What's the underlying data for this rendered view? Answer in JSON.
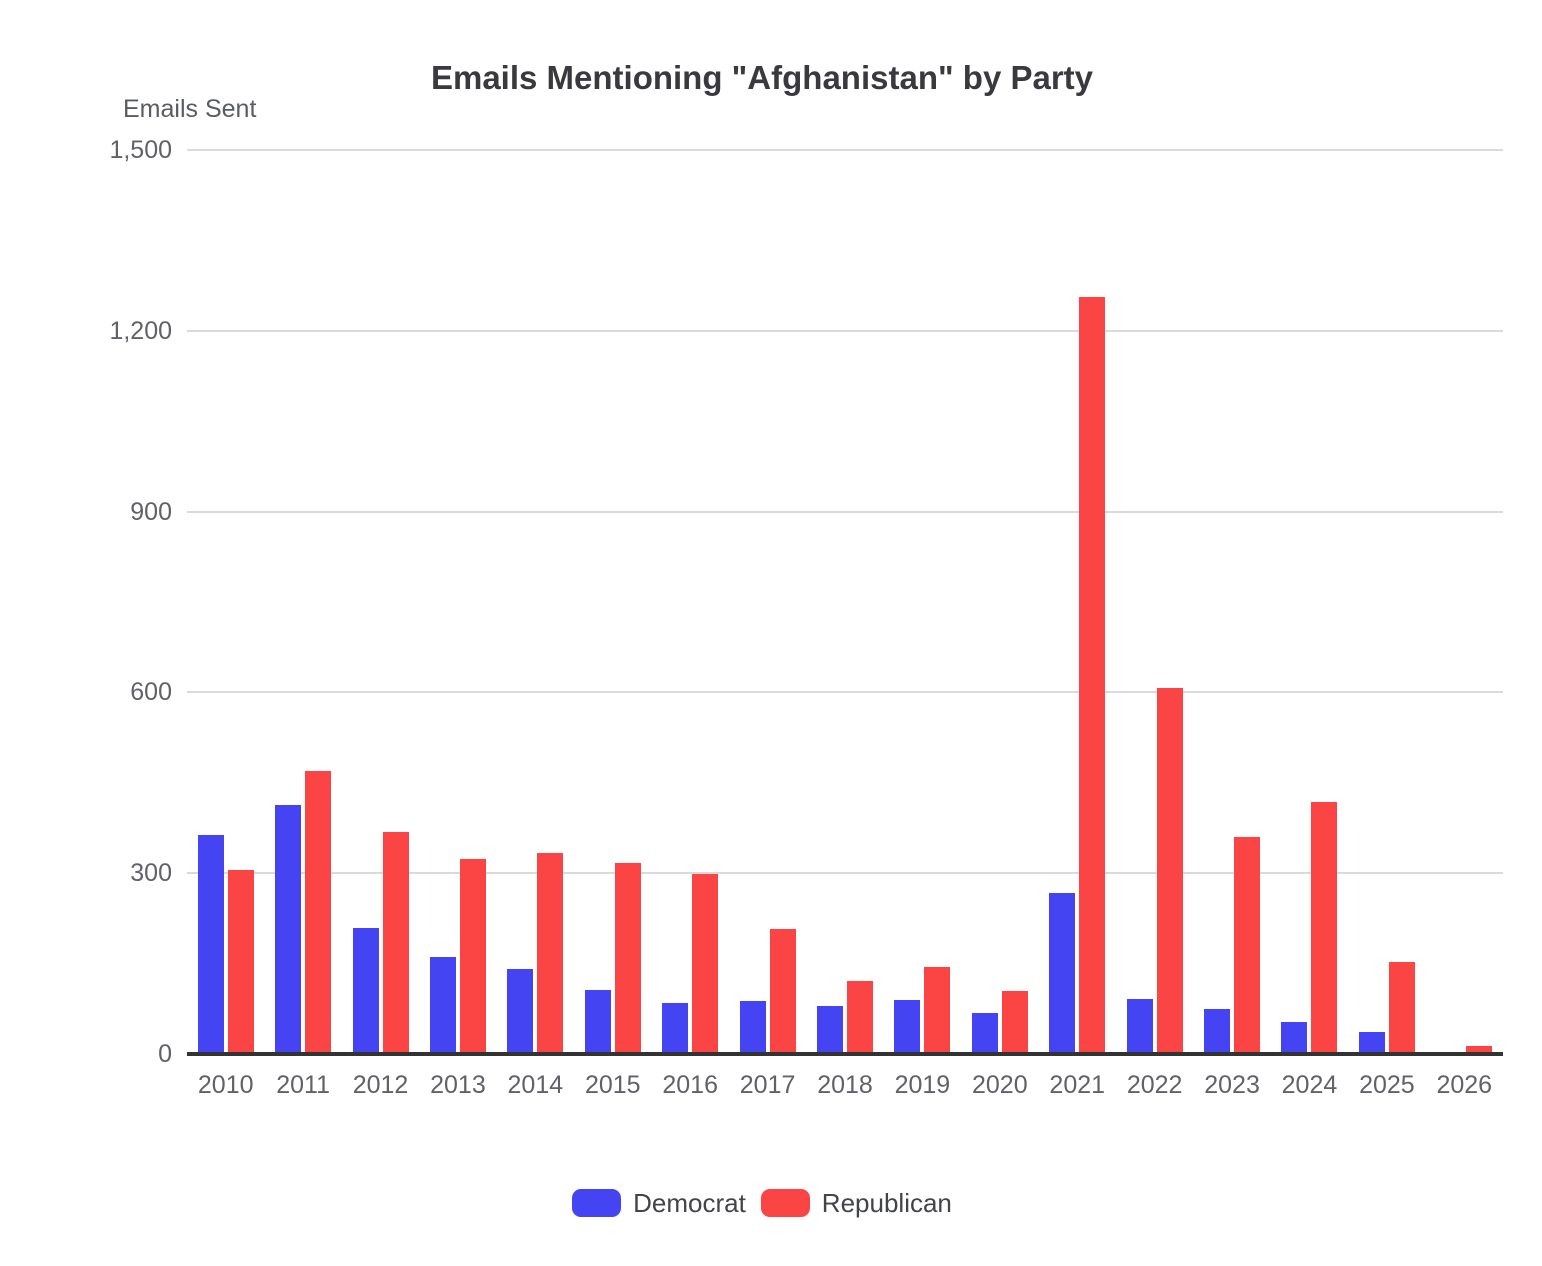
{
  "title": "Emails Mentioning \"Afghanistan\" by Party",
  "y_axis_title": "Emails Sent",
  "colors": {
    "democrat": "#4544F2",
    "republican": "#FB4545",
    "gridline": "#d9d9de",
    "axis_line": "#333333",
    "axis_text": "#616167",
    "title_text": "#3a3a3e"
  },
  "chart_data": {
    "type": "bar",
    "title": "Emails Mentioning \"Afghanistan\" by Party",
    "xlabel": "",
    "ylabel": "Emails Sent",
    "ylim": [
      0,
      1500
    ],
    "yticks": [
      0,
      300,
      600,
      900,
      1200,
      1500
    ],
    "ytick_labels": [
      "0",
      "300",
      "600",
      "900",
      "1,200",
      "1,500"
    ],
    "grid": true,
    "legend_position": "bottom",
    "categories": [
      "2010",
      "2011",
      "2012",
      "2013",
      "2014",
      "2015",
      "2016",
      "2017",
      "2018",
      "2019",
      "2020",
      "2021",
      "2022",
      "2023",
      "2024",
      "2025",
      "2026"
    ],
    "series": [
      {
        "name": "Democrat",
        "values": [
          364,
          413,
          209,
          161,
          141,
          106,
          84,
          88,
          79,
          90,
          68,
          267,
          92,
          74,
          54,
          36,
          4
        ]
      },
      {
        "name": "Republican",
        "values": [
          306,
          470,
          369,
          324,
          334,
          317,
          298,
          207,
          122,
          144,
          104,
          1256,
          607,
          360,
          418,
          152,
          13
        ]
      }
    ]
  }
}
